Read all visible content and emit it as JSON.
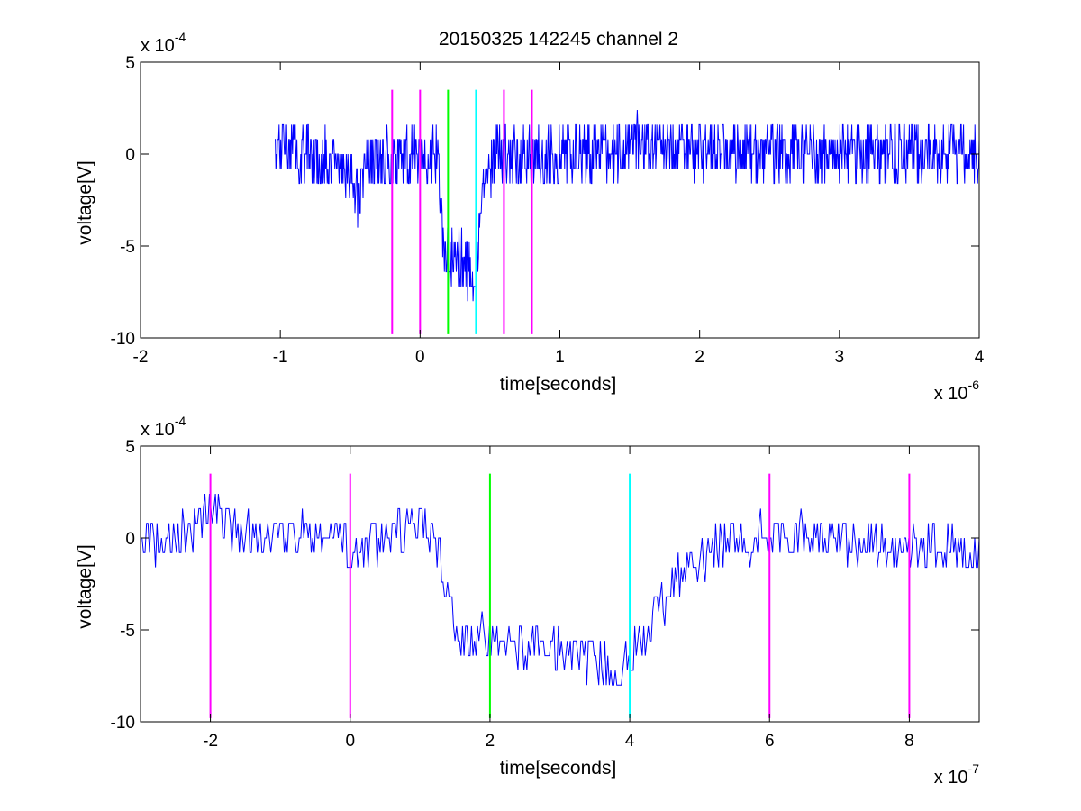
{
  "figure": {
    "title": "20150325 142245 channel 2",
    "background": "#ffffff"
  },
  "colors": {
    "signal": "#0000ff",
    "marker_magenta": "#ff00ff",
    "marker_green": "#00ff00",
    "marker_cyan": "#00ffff",
    "axes": "#000000"
  },
  "chart_data": [
    {
      "type": "line",
      "title": "20150325 142245 channel 2",
      "xlabel": "time[seconds]",
      "ylabel": "voltage[V]",
      "x_multiplier": "x 10",
      "x_exponent": "-6",
      "y_multiplier": "x 10",
      "y_exponent": "-4",
      "xlim": [
        -2,
        4
      ],
      "ylim": [
        -10,
        5
      ],
      "xticks": [
        -2,
        -1,
        0,
        1,
        2,
        3,
        4
      ],
      "yticks": [
        5,
        0,
        -5,
        -10
      ],
      "grid": false,
      "markers": [
        {
          "x": -0.2,
          "color": "#ff00ff",
          "y_range": [
            -9.8,
            3.5
          ]
        },
        {
          "x": 0.0,
          "color": "#ff00ff",
          "y_range": [
            -9.8,
            3.5
          ]
        },
        {
          "x": 0.2,
          "color": "#00ff00",
          "y_range": [
            -9.8,
            3.5
          ]
        },
        {
          "x": 0.4,
          "color": "#00ffff",
          "y_range": [
            -9.8,
            3.5
          ]
        },
        {
          "x": 0.6,
          "color": "#ff00ff",
          "y_range": [
            -9.8,
            3.5
          ]
        },
        {
          "x": 0.8,
          "color": "#ff00ff",
          "y_range": [
            -9.8,
            3.5
          ]
        }
      ],
      "series": [
        {
          "x_start": -1.04,
          "x_end": 4.0,
          "noise_amplitude": 1.6,
          "anchors": [
            [
              -1.04,
              0.5
            ],
            [
              -0.5,
              -0.6
            ],
            [
              -0.44,
              -2.4
            ],
            [
              -0.4,
              -0.5
            ],
            [
              0.1,
              0.3
            ],
            [
              0.13,
              -0.3
            ],
            [
              0.15,
              -3.5
            ],
            [
              0.17,
              -5.6
            ],
            [
              0.2,
              -5.4
            ],
            [
              0.38,
              -6.3
            ],
            [
              0.4,
              -6.8
            ],
            [
              0.42,
              -4.5
            ],
            [
              0.46,
              -1.3
            ],
            [
              0.55,
              0.0
            ],
            [
              1.0,
              0.0
            ],
            [
              1.4,
              0.1
            ],
            [
              1.5,
              0.5
            ],
            [
              2.0,
              0.2
            ],
            [
              4.0,
              0.0
            ]
          ]
        }
      ]
    },
    {
      "type": "line",
      "title": "",
      "xlabel": "time[seconds]",
      "ylabel": "voltage[V]",
      "x_multiplier": "x 10",
      "x_exponent": "-7",
      "y_multiplier": "x 10",
      "y_exponent": "-4",
      "xlim": [
        -3,
        9
      ],
      "ylim": [
        -10,
        5
      ],
      "xticks": [
        -2,
        0,
        2,
        4,
        6,
        8
      ],
      "yticks": [
        5,
        0,
        -5,
        -10
      ],
      "grid": false,
      "markers": [
        {
          "x": -2,
          "color": "#ff00ff",
          "y_range": [
            -9.8,
            3.5
          ]
        },
        {
          "x": 0,
          "color": "#ff00ff",
          "y_range": [
            -9.8,
            3.5
          ]
        },
        {
          "x": 2,
          "color": "#00ff00",
          "y_range": [
            -9.8,
            3.5
          ]
        },
        {
          "x": 4,
          "color": "#00ffff",
          "y_range": [
            -9.8,
            3.5
          ]
        },
        {
          "x": 6,
          "color": "#ff00ff",
          "y_range": [
            -9.8,
            3.5
          ]
        },
        {
          "x": 8,
          "color": "#ff00ff",
          "y_range": [
            -9.8,
            3.5
          ]
        }
      ],
      "series": [
        {
          "x_start": -3.0,
          "x_end": 9.0,
          "noise_amplitude": 1.3,
          "anchors": [
            [
              -3.0,
              0.0
            ],
            [
              -2.2,
              0.3
            ],
            [
              -1.9,
              1.8
            ],
            [
              -1.7,
              0.0
            ],
            [
              -0.05,
              0.2
            ],
            [
              0.0,
              -2.8
            ],
            [
              0.1,
              -0.6
            ],
            [
              0.5,
              0.3
            ],
            [
              1.0,
              0.8
            ],
            [
              1.2,
              -0.3
            ],
            [
              1.4,
              -2.5
            ],
            [
              1.5,
              -4.6
            ],
            [
              1.7,
              -5.6
            ],
            [
              2.0,
              -5.3
            ],
            [
              2.5,
              -5.8
            ],
            [
              3.0,
              -6.2
            ],
            [
              3.5,
              -6.6
            ],
            [
              3.95,
              -6.9
            ],
            [
              4.05,
              -6.5
            ],
            [
              4.3,
              -4.7
            ],
            [
              4.7,
              -2.2
            ],
            [
              5.0,
              -1.0
            ],
            [
              5.5,
              -0.2
            ],
            [
              6.0,
              0.1
            ],
            [
              9.0,
              -0.7
            ]
          ]
        }
      ]
    }
  ]
}
